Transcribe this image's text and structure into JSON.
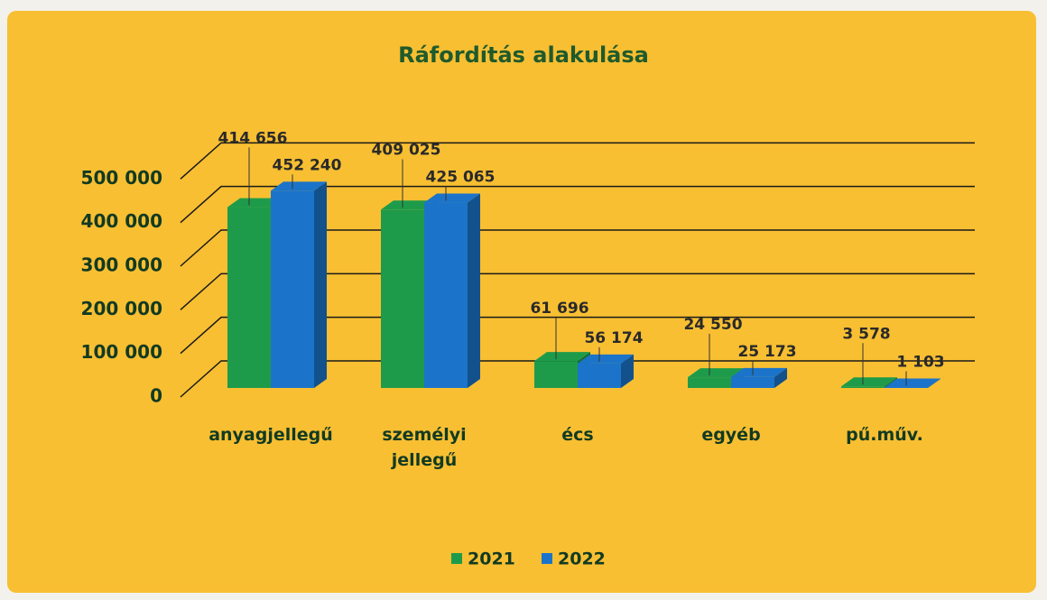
{
  "chart_data": {
    "type": "bar3d",
    "title": "Ráfordítás alakulása",
    "categories": [
      "anyagjellegű",
      "személyi jellegű",
      "écs",
      "egyéb",
      "pű.műv."
    ],
    "series": [
      {
        "name": "2021",
        "color": "#1e9b4a",
        "values": [
          414656,
          409025,
          61696,
          24550,
          3578
        ],
        "value_labels": [
          "414 656",
          "409 025",
          "61 696",
          "24 550",
          "3 578"
        ]
      },
      {
        "name": "2022",
        "color": "#1b74c9",
        "values": [
          452240,
          425065,
          56174,
          25173,
          1103
        ],
        "value_labels": [
          "452 240",
          "425 065",
          "56 174",
          "25 173",
          "1 103"
        ]
      }
    ],
    "ylim": [
      0,
      600000
    ],
    "yticks": [
      0,
      {
        "value": 100000,
        "label": "100 000"
      },
      {
        "value": 200000,
        "label": "200 000"
      },
      {
        "value": 300000,
        "label": "300 000"
      },
      {
        "value": 400000,
        "label": "400 000"
      },
      {
        "value": 500000,
        "label": "500 000"
      }
    ],
    "grid": true,
    "legend": "bottom"
  }
}
